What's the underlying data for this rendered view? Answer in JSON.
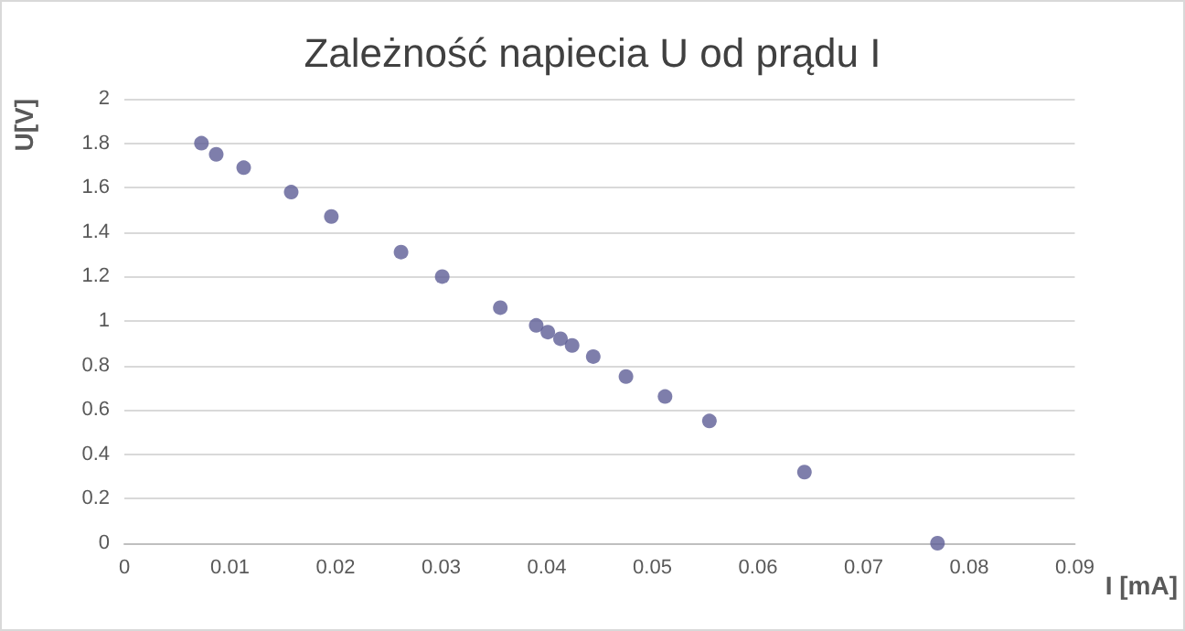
{
  "chart_data": {
    "type": "scatter",
    "title": "Zależność napiecia U od prądu I",
    "xlabel": "I [mA]",
    "ylabel": "U[V]",
    "x": [
      0.0073,
      0.0087,
      0.0113,
      0.0158,
      0.0196,
      0.0262,
      0.0301,
      0.0356,
      0.039,
      0.0401,
      0.0413,
      0.0424,
      0.0444,
      0.0475,
      0.0512,
      0.0554,
      0.0644,
      0.077
    ],
    "values": [
      1.8,
      1.75,
      1.69,
      1.58,
      1.47,
      1.31,
      1.2,
      1.06,
      0.98,
      0.95,
      0.92,
      0.89,
      0.84,
      0.75,
      0.66,
      0.55,
      0.32,
      0
    ],
    "color": "#5e5e96",
    "marker": "circle",
    "xlim": [
      0,
      0.09
    ],
    "xticks": [
      0,
      0.01,
      0.02,
      0.03,
      0.04,
      0.05,
      0.06,
      0.07,
      0.08,
      0.09
    ],
    "ylim": [
      0,
      2
    ],
    "yticks": [
      0,
      0.2,
      0.4,
      0.6,
      0.8,
      1,
      1.2,
      1.4,
      1.6,
      1.8,
      2
    ],
    "grid": "y"
  }
}
